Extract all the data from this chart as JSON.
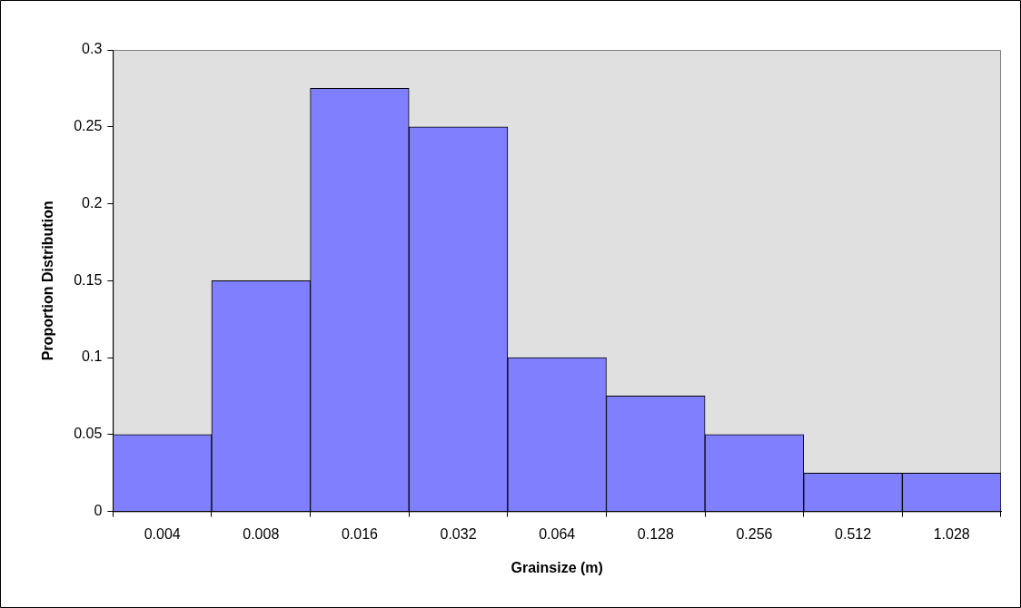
{
  "chart_data": {
    "type": "bar",
    "xlabel": "Grainsize (m)",
    "ylabel": "Proportion Distribution",
    "categories": [
      "0.004",
      "0.008",
      "0.016",
      "0.032",
      "0.064",
      "0.128",
      "0.256",
      "0.512",
      "1.028"
    ],
    "values": [
      0.05,
      0.15,
      0.275,
      0.25,
      0.1,
      0.075,
      0.05,
      0.025,
      0.025
    ],
    "color": "#8080ff",
    "ylim": [
      0,
      0.3
    ],
    "yticks": [
      0,
      0.05,
      0.1,
      0.15,
      0.2,
      0.25,
      0.3
    ],
    "grid": false,
    "legend": false
  }
}
